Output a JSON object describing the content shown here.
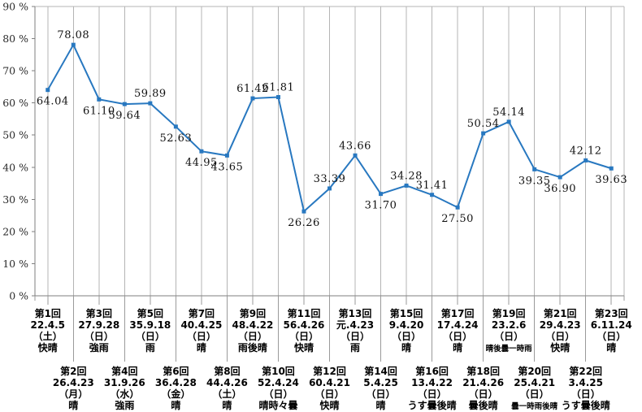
{
  "chart_data": {
    "type": "line",
    "title": "",
    "legend": "none",
    "ylim": [
      0,
      90
    ],
    "ytick_step": 10,
    "ytick_labels": [
      "0 %",
      "10 %",
      "20 %",
      "30 %",
      "40 %",
      "50 %",
      "60 %",
      "70 %",
      "80 %",
      "90 %"
    ],
    "grid": "vertical-category-gridlines-only",
    "line_color": "#2878c0",
    "marker_color": "#2878c0",
    "marker_shape": "square",
    "axis_color": "#7f7f7f",
    "grid_color": "#b4b4b4",
    "leader_color": "#9a9a9a",
    "points": [
      {
        "round": "第1回",
        "date": "22.4.5",
        "day": "（土）",
        "weather": "快晴",
        "value": 64.04,
        "label": "64.04",
        "label_pos": "below",
        "label_dx": 6,
        "row": 1
      },
      {
        "round": "第2回",
        "date": "26.4.23",
        "day": "（月）",
        "weather": "晴",
        "value": 78.08,
        "label": "78.08",
        "label_pos": "above",
        "row": 2
      },
      {
        "round": "第3回",
        "date": "27.9.28",
        "day": "（日）",
        "weather": "強雨",
        "value": 61.1,
        "label": "61.10",
        "label_pos": "below",
        "row": 1
      },
      {
        "round": "第4回",
        "date": "31.9.26",
        "day": "（水）",
        "weather": "強雨",
        "value": 59.64,
        "label": "59.64",
        "label_pos": "below",
        "row": 2
      },
      {
        "round": "第5回",
        "date": "35.9.18",
        "day": "（日）",
        "weather": "雨",
        "value": 59.89,
        "label": "59.89",
        "label_pos": "above",
        "row": 1
      },
      {
        "round": "第6回",
        "date": "36.4.28",
        "day": "（金）",
        "weather": "晴",
        "value": 52.63,
        "label": "52.63",
        "label_pos": "below",
        "row": 2
      },
      {
        "round": "第7回",
        "date": "40.4.25",
        "day": "（日）",
        "weather": "晴",
        "value": 44.95,
        "label": "44.95",
        "label_pos": "below",
        "row": 1
      },
      {
        "round": "第8回",
        "date": "44.4.26",
        "day": "（土）",
        "weather": "晴",
        "value": 43.65,
        "label": "43.65",
        "label_pos": "below",
        "row": 2
      },
      {
        "round": "第9回",
        "date": "48.4.22",
        "day": "（日）",
        "weather": "雨後晴",
        "value": 61.42,
        "label": "61.42",
        "label_pos": "above",
        "row": 1
      },
      {
        "round": "第10回",
        "date": "52.4.24",
        "day": "（日）",
        "weather": "晴時々曇",
        "value": 61.81,
        "label": "61.81",
        "label_pos": "above",
        "row": 2
      },
      {
        "round": "第11回",
        "date": "56.4.26",
        "day": "（日）",
        "weather": "快晴",
        "value": 26.26,
        "label": "26.26",
        "label_pos": "below",
        "row": 1
      },
      {
        "round": "第12回",
        "date": "60.4.21",
        "day": "（日）",
        "weather": "快晴",
        "value": 33.39,
        "label": "33.39",
        "label_pos": "above",
        "row": 2
      },
      {
        "round": "第13回",
        "date": "元.4.23",
        "day": "（日）",
        "weather": "雨",
        "value": 43.66,
        "label": "43.66",
        "label_pos": "above",
        "row": 1
      },
      {
        "round": "第14回",
        "date": "5.4.25",
        "day": "（日）",
        "weather": "晴",
        "value": 31.7,
        "label": "31.70",
        "label_pos": "below",
        "row": 2
      },
      {
        "round": "第15回",
        "date": "9.4.20",
        "day": "（日）",
        "weather": "晴",
        "value": 34.28,
        "label": "34.28",
        "label_pos": "above",
        "row": 1
      },
      {
        "round": "第16回",
        "date": "13.4.22",
        "day": "（日）",
        "weather": "うす曇後晴",
        "value": 31.41,
        "label": "31.41",
        "label_pos": "above",
        "row": 2
      },
      {
        "round": "第17回",
        "date": "17.4.24",
        "day": "（日）",
        "weather": "晴",
        "value": 27.5,
        "label": "27.50",
        "label_pos": "below",
        "row": 1
      },
      {
        "round": "第18回",
        "date": "21.4.26",
        "day": "（日）",
        "weather": "曇後晴",
        "value": 50.54,
        "label": "50.54",
        "label_pos": "above",
        "row": 2
      },
      {
        "round": "第19回",
        "date": "23.2.6",
        "day": "（日）",
        "weather": "晴後曇一時雨",
        "weather_small": true,
        "value": 54.14,
        "label": "54.14",
        "label_pos": "above",
        "row": 1
      },
      {
        "round": "第20回",
        "date": "25.4.21",
        "day": "（日）",
        "weather": "曇一時雨後晴",
        "weather_small": true,
        "value": 39.35,
        "label": "39.35",
        "label_pos": "below",
        "row": 2
      },
      {
        "round": "第21回",
        "date": "29.4.23",
        "day": "（日）",
        "weather": "快晴",
        "value": 36.9,
        "label": "36.90",
        "label_pos": "below",
        "row": 1
      },
      {
        "round": "第22回",
        "date": "3.4.25",
        "day": "（日）",
        "weather": "うす曇後晴",
        "value": 42.12,
        "label": "42.12",
        "label_pos": "above",
        "row": 2
      },
      {
        "round": "第23回",
        "date": "6.11.24",
        "day": "（日）",
        "weather": "晴",
        "value": 39.63,
        "label": "39.63",
        "label_pos": "below",
        "row": 1
      }
    ]
  }
}
